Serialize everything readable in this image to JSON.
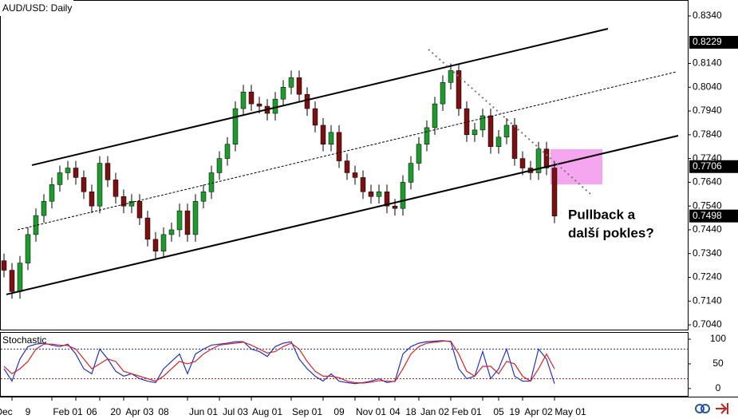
{
  "chart_data": {
    "type": "candlestick",
    "title": "AUD/USD: Daily",
    "categories": [
      "Dec",
      null,
      null,
      "9",
      null,
      null,
      null,
      null,
      "Feb 01",
      null,
      null,
      "06",
      null,
      null,
      "20",
      null,
      null,
      "Apr 03",
      null,
      null,
      "08",
      null,
      null,
      null,
      null,
      "Jun 01",
      null,
      null,
      null,
      "Jul 03",
      null,
      null,
      null,
      "Aug 01",
      null,
      null,
      null,
      null,
      "Sep 01",
      null,
      null,
      null,
      "09",
      null,
      null,
      null,
      "Nov 01",
      null,
      null,
      "04",
      null,
      "18",
      null,
      null,
      "Jan 02",
      null,
      null,
      null,
      "Feb 01",
      null,
      null,
      null,
      "05",
      null,
      "19",
      null,
      null,
      "Apr 02",
      null,
      null,
      null,
      "May 01"
    ],
    "open": [
      0.731,
      0.727,
      0.718,
      0.73,
      0.742,
      0.75,
      0.756,
      0.763,
      0.768,
      0.77,
      0.766,
      0.76,
      0.754,
      0.772,
      0.765,
      0.758,
      0.754,
      0.756,
      0.749,
      0.74,
      0.735,
      0.742,
      0.744,
      0.752,
      0.742,
      0.756,
      0.76,
      0.768,
      0.774,
      0.78,
      0.795,
      0.802,
      0.797,
      0.796,
      0.793,
      0.799,
      0.804,
      0.808,
      0.801,
      0.795,
      0.788,
      0.78,
      0.785,
      0.773,
      0.768,
      0.766,
      0.76,
      0.758,
      0.76,
      0.754,
      0.753,
      0.764,
      0.772,
      0.78,
      0.787,
      0.797,
      0.806,
      0.811,
      0.795,
      0.784,
      0.786,
      0.792,
      0.779,
      0.783,
      0.788,
      0.774,
      0.77,
      0.768,
      0.778,
      0.77,
      null,
      null
    ],
    "high": [
      0.734,
      0.73,
      0.733,
      0.745,
      0.753,
      0.759,
      0.766,
      0.771,
      0.773,
      0.773,
      0.769,
      0.763,
      0.775,
      0.775,
      0.768,
      0.761,
      0.759,
      0.759,
      0.752,
      0.743,
      0.745,
      0.747,
      0.755,
      0.755,
      0.759,
      0.763,
      0.771,
      0.777,
      0.783,
      0.798,
      0.805,
      0.805,
      0.8,
      0.799,
      0.802,
      0.807,
      0.811,
      0.811,
      0.804,
      0.798,
      0.791,
      0.788,
      0.788,
      0.776,
      0.771,
      0.769,
      0.763,
      0.763,
      0.763,
      0.757,
      0.767,
      0.775,
      0.783,
      0.79,
      0.8,
      0.809,
      0.814,
      0.814,
      0.798,
      0.789,
      0.795,
      0.795,
      0.786,
      0.791,
      0.791,
      0.777,
      0.773,
      0.781,
      0.781,
      0.773,
      null,
      null
    ],
    "low": [
      0.724,
      0.715,
      0.715,
      0.727,
      0.739,
      0.747,
      0.753,
      0.76,
      0.765,
      0.763,
      0.757,
      0.751,
      0.751,
      0.762,
      0.755,
      0.751,
      0.751,
      0.746,
      0.737,
      0.732,
      0.732,
      0.739,
      0.741,
      0.739,
      0.739,
      0.753,
      0.757,
      0.765,
      0.771,
      0.777,
      0.792,
      0.794,
      0.793,
      0.79,
      0.79,
      0.796,
      0.801,
      0.798,
      0.792,
      0.785,
      0.777,
      0.777,
      0.77,
      0.765,
      0.763,
      0.757,
      0.755,
      0.755,
      0.751,
      0.75,
      0.75,
      0.761,
      0.769,
      0.777,
      0.784,
      0.794,
      0.803,
      0.792,
      0.781,
      0.781,
      0.783,
      0.776,
      0.776,
      0.78,
      0.771,
      0.767,
      0.765,
      0.765,
      0.767,
      0.7468,
      null,
      null
    ],
    "close": [
      0.727,
      0.718,
      0.73,
      0.742,
      0.75,
      0.756,
      0.763,
      0.768,
      0.77,
      0.766,
      0.76,
      0.754,
      0.772,
      0.765,
      0.758,
      0.754,
      0.756,
      0.749,
      0.74,
      0.735,
      0.742,
      0.744,
      0.752,
      0.742,
      0.756,
      0.76,
      0.768,
      0.774,
      0.78,
      0.795,
      0.802,
      0.797,
      0.796,
      0.793,
      0.799,
      0.804,
      0.808,
      0.801,
      0.795,
      0.788,
      0.78,
      0.785,
      0.773,
      0.768,
      0.766,
      0.76,
      0.758,
      0.76,
      0.754,
      0.753,
      0.764,
      0.772,
      0.78,
      0.787,
      0.797,
      0.806,
      0.811,
      0.795,
      0.784,
      0.786,
      0.792,
      0.779,
      0.783,
      0.788,
      0.774,
      0.77,
      0.768,
      0.778,
      0.77,
      0.7498,
      null,
      null
    ],
    "up_color": "#1f9a2e",
    "down_color": "#7a1010",
    "ylim": [
      0.702,
      0.8407
    ],
    "yticks": [
      {
        "value": 0.834,
        "label": "0.8340"
      },
      {
        "value": 0.814,
        "label": "0.8140"
      },
      {
        "value": 0.804,
        "label": "0.8040"
      },
      {
        "value": 0.794,
        "label": "0.7940"
      },
      {
        "value": 0.784,
        "label": "0.7840"
      },
      {
        "value": 0.774,
        "label": "0.7740"
      },
      {
        "value": 0.764,
        "label": "0.7640"
      },
      {
        "value": 0.754,
        "label": "0.7540"
      },
      {
        "value": 0.744,
        "label": "0.7440"
      },
      {
        "value": 0.734,
        "label": "0.7340"
      },
      {
        "value": 0.724,
        "label": "0.7240"
      },
      {
        "value": 0.714,
        "label": "0.7140"
      },
      {
        "value": 0.704,
        "label": "0.7040"
      }
    ],
    "price_marks": [
      {
        "value": 0.8229,
        "label": "0.8229"
      },
      {
        "value": 0.7706,
        "label": "0.7706"
      },
      {
        "value": 0.7498,
        "label": "0.7498"
      }
    ],
    "lines": [
      {
        "style": "solid",
        "x": [
          3.5,
          75.7
        ],
        "y": [
          0.7712,
          0.8286
        ]
      },
      {
        "style": "solid",
        "x": [
          0.3,
          84.5
        ],
        "y": [
          0.7168,
          0.7836
        ]
      },
      {
        "style": "dashed",
        "x": [
          1.7,
          84.3
        ],
        "y": [
          0.744,
          0.8105
        ]
      },
      {
        "style": "dotted",
        "x": [
          53.2,
          73.5
        ],
        "y": [
          0.8199,
          0.7591
        ]
      }
    ],
    "zone": {
      "x": [
        68.5,
        75
      ],
      "y": [
        0.7779,
        0.7631
      ],
      "color": "#f5a6ee"
    },
    "annotation": [
      "Pullback a",
      "další pokles?"
    ],
    "indicator": {
      "name": "Stochastic",
      "ylim": [
        -10,
        113
      ],
      "yticks": [
        0,
        50,
        100
      ],
      "levels": [
        {
          "value": 80,
          "color": "#2222cc"
        },
        {
          "value": 20,
          "color": "#cc2222"
        }
      ],
      "series": [
        {
          "color": "#2233cc",
          "values": [
            40,
            15,
            60,
            85,
            90,
            92,
            88,
            85,
            90,
            70,
            40,
            30,
            80,
            60,
            35,
            25,
            30,
            20,
            15,
            12,
            40,
            55,
            70,
            30,
            70,
            80,
            88,
            90,
            92,
            95,
            95,
            80,
            75,
            65,
            85,
            92,
            95,
            60,
            40,
            25,
            15,
            30,
            15,
            12,
            10,
            12,
            15,
            20,
            12,
            15,
            70,
            85,
            92,
            95,
            96,
            97,
            95,
            40,
            20,
            25,
            75,
            20,
            40,
            80,
            25,
            15,
            15,
            80,
            60,
            10,
            null,
            null
          ]
        },
        {
          "color": "#dd2222",
          "values": [
            45,
            30,
            40,
            55,
            80,
            90,
            90,
            88,
            87,
            80,
            60,
            40,
            50,
            60,
            55,
            35,
            30,
            25,
            20,
            15,
            25,
            40,
            55,
            50,
            55,
            70,
            80,
            88,
            90,
            92,
            94,
            88,
            80,
            72,
            75,
            85,
            92,
            80,
            55,
            35,
            25,
            25,
            22,
            15,
            12,
            11,
            13,
            16,
            15,
            14,
            40,
            70,
            85,
            92,
            94,
            96,
            96,
            70,
            35,
            25,
            45,
            45,
            30,
            55,
            50,
            25,
            15,
            40,
            70,
            40,
            null,
            null
          ]
        }
      ]
    }
  }
}
